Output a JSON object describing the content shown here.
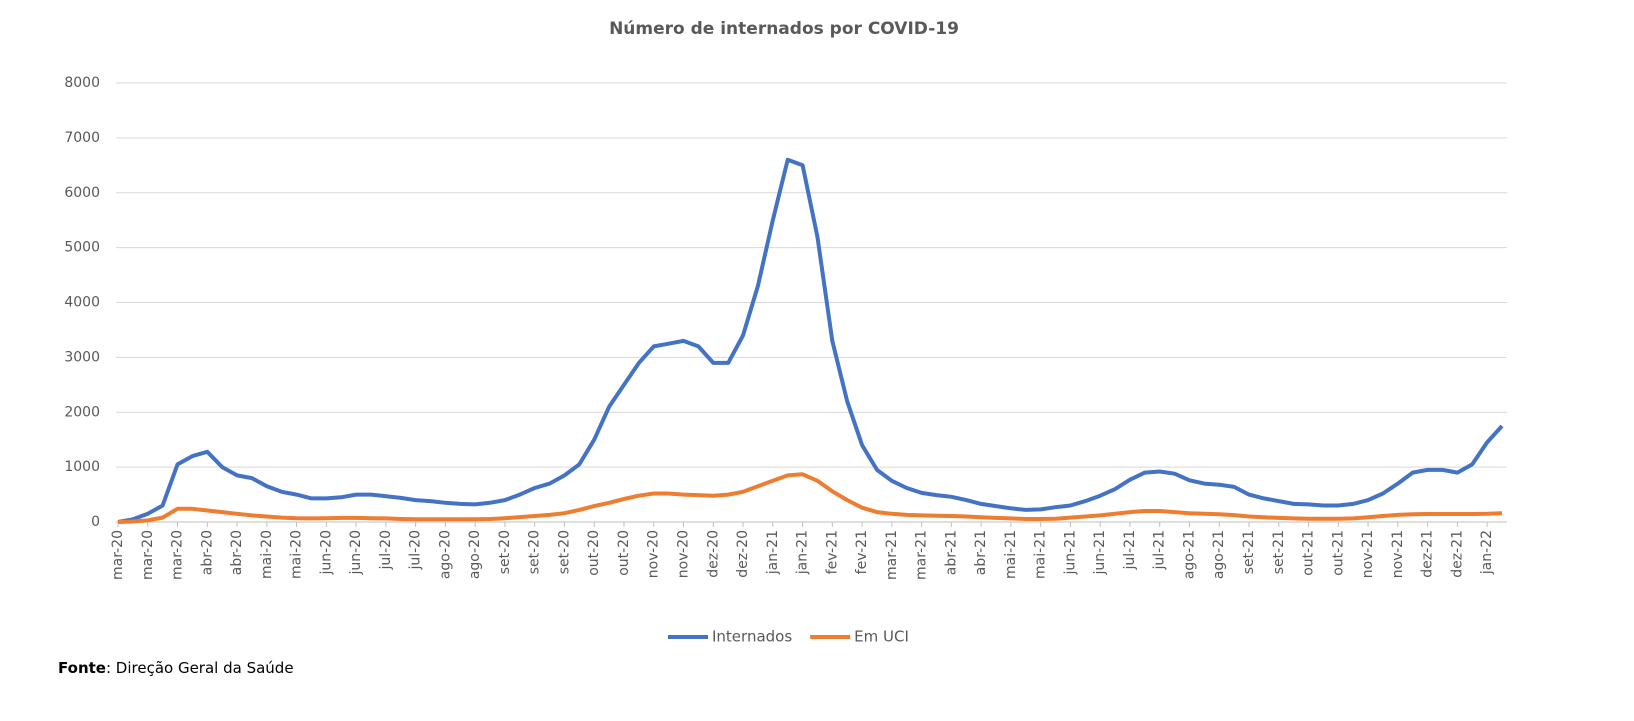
{
  "chart_data": {
    "type": "line",
    "title": "Número de internados por COVID-19",
    "categories": [
      "mar-20",
      null,
      "mar-20",
      null,
      "mar-20",
      null,
      "abr-20",
      null,
      "abr-20",
      null,
      "mai-20",
      null,
      "mai-20",
      null,
      "jun-20",
      null,
      "jun-20",
      null,
      "jul-20",
      null,
      "jul-20",
      null,
      "ago-20",
      null,
      "ago-20",
      null,
      "set-20",
      null,
      "set-20",
      null,
      "set-20",
      null,
      "out-20",
      null,
      "out-20",
      null,
      "nov-20",
      null,
      "nov-20",
      null,
      "dez-20",
      null,
      "dez-20",
      null,
      "jan-21",
      null,
      "jan-21",
      null,
      "fev-21",
      null,
      "fev-21",
      null,
      "mar-21",
      null,
      "mar-21",
      null,
      "abr-21",
      null,
      "abr-21",
      null,
      "mai-21",
      null,
      "mai-21",
      null,
      "jun-21",
      null,
      "jun-21",
      null,
      "jul-21",
      null,
      "jul-21",
      null,
      "ago-21",
      null,
      "ago-21",
      null,
      "set-21",
      null,
      "set-21",
      null,
      "out-21",
      null,
      "out-21",
      null,
      "nov-21",
      null,
      "nov-21",
      null,
      "dez-21",
      null,
      "dez-21",
      null,
      "jan-22",
      null
    ],
    "series": [
      {
        "name": "Internados",
        "color": "#4472c4",
        "values": [
          0,
          50,
          150,
          300,
          1050,
          1200,
          1280,
          1000,
          850,
          800,
          650,
          550,
          500,
          430,
          430,
          450,
          500,
          500,
          470,
          440,
          400,
          380,
          350,
          330,
          320,
          350,
          400,
          500,
          620,
          700,
          850,
          1050,
          1500,
          2100,
          2500,
          2900,
          3200,
          3250,
          3300,
          3200,
          2900,
          2900,
          3400,
          4300,
          5500,
          6600,
          6500,
          5200,
          3300,
          2200,
          1400,
          950,
          750,
          620,
          530,
          490,
          460,
          400,
          330,
          290,
          250,
          220,
          230,
          270,
          300,
          380,
          480,
          600,
          770,
          900,
          920,
          880,
          760,
          700,
          680,
          640,
          500,
          430,
          380,
          330,
          320,
          300,
          300,
          330,
          400,
          520,
          700,
          900,
          950,
          950,
          900,
          1050,
          1450,
          1750
        ]
      },
      {
        "name": "Em UCI",
        "color": "#ed7d31",
        "values": [
          0,
          10,
          30,
          80,
          240,
          240,
          210,
          180,
          150,
          120,
          100,
          80,
          70,
          65,
          70,
          75,
          75,
          70,
          65,
          55,
          50,
          50,
          50,
          50,
          50,
          55,
          70,
          90,
          110,
          130,
          160,
          220,
          290,
          350,
          420,
          480,
          520,
          520,
          500,
          490,
          480,
          500,
          550,
          650,
          750,
          850,
          870,
          750,
          560,
          400,
          260,
          180,
          150,
          130,
          120,
          115,
          110,
          100,
          85,
          75,
          65,
          55,
          55,
          60,
          80,
          100,
          120,
          150,
          180,
          200,
          200,
          180,
          160,
          150,
          140,
          125,
          100,
          85,
          75,
          65,
          60,
          60,
          60,
          65,
          85,
          110,
          130,
          140,
          145,
          145,
          145,
          145,
          150,
          160
        ]
      }
    ],
    "ylim": [
      0,
      8000
    ],
    "yticks": [
      0,
      1000,
      2000,
      3000,
      4000,
      5000,
      6000,
      7000,
      8000
    ],
    "grid": true,
    "legend": "bottom",
    "source": {
      "label": "Fonte",
      "text": ": Direção Geral da Saúde"
    }
  }
}
